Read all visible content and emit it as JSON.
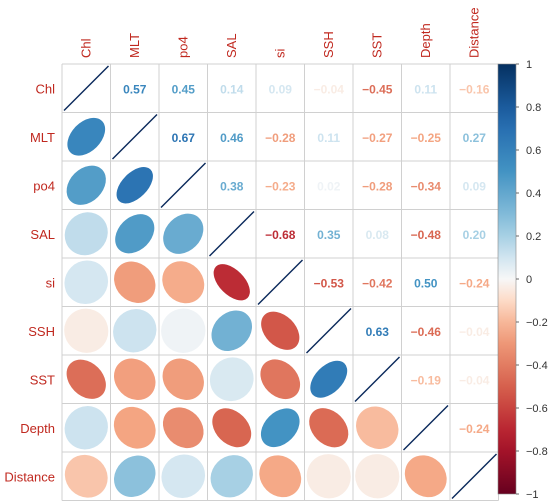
{
  "chart_data": {
    "type": "heatmap",
    "variables": [
      "Chl",
      "MLT",
      "po4",
      "SAL",
      "si",
      "SSH",
      "SST",
      "Depth",
      "Distance"
    ],
    "matrix": [
      [
        1.0,
        0.57,
        0.45,
        0.14,
        0.09,
        -0.04,
        -0.45,
        0.11,
        -0.16
      ],
      [
        0.57,
        1.0,
        0.67,
        0.46,
        -0.28,
        0.11,
        -0.27,
        -0.25,
        0.27
      ],
      [
        0.45,
        0.67,
        1.0,
        0.38,
        -0.23,
        0.02,
        -0.28,
        -0.34,
        0.09
      ],
      [
        0.14,
        0.46,
        0.38,
        1.0,
        -0.68,
        0.35,
        0.08,
        -0.48,
        0.2
      ],
      [
        0.09,
        -0.28,
        -0.23,
        -0.68,
        1.0,
        -0.53,
        -0.42,
        0.5,
        -0.24
      ],
      [
        -0.04,
        0.11,
        0.02,
        0.35,
        -0.53,
        1.0,
        0.63,
        -0.46,
        -0.04
      ],
      [
        -0.45,
        -0.27,
        -0.28,
        0.08,
        -0.42,
        0.63,
        1.0,
        -0.19,
        -0.04
      ],
      [
        0.11,
        -0.25,
        -0.34,
        -0.48,
        0.5,
        -0.46,
        -0.19,
        1.0,
        -0.24
      ],
      [
        -0.16,
        0.27,
        0.09,
        0.2,
        -0.24,
        -0.04,
        -0.04,
        -0.24,
        1.0
      ]
    ],
    "upper_triangle": "numbers",
    "lower_triangle": "ellipses",
    "value_range": [
      -1,
      1
    ],
    "colorbar_ticks": [
      "1",
      "0.8",
      "0.6",
      "0.4",
      "0.2",
      "0",
      "−0.2",
      "−0.4",
      "−0.6",
      "−0.8",
      "−1"
    ],
    "colors": {
      "negative_end": "#67001f",
      "neutral": "#f7f7f7",
      "positive_end": "#053061",
      "label_color": "#c0281f",
      "grid": "#d0d0d0"
    },
    "legend": "right"
  }
}
